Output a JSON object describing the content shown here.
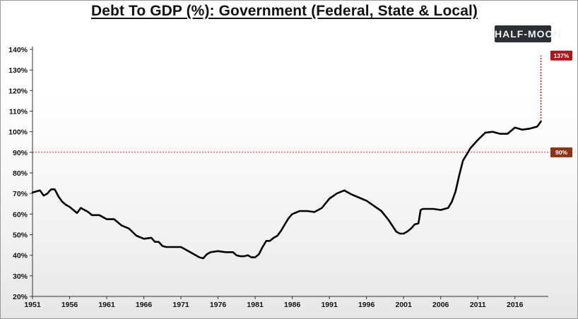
{
  "chart_data": {
    "type": "line",
    "title": "Debt To GDP (%): Government (Federal, State & Local)",
    "xlabel": "",
    "ylabel": "",
    "xlim": [
      1951,
      2020.5
    ],
    "ylim": [
      20,
      140
    ],
    "y_ticks": [
      20,
      30,
      40,
      50,
      60,
      70,
      80,
      90,
      100,
      110,
      120,
      130,
      140
    ],
    "y_tick_labels": [
      "20%",
      "30%",
      "40%",
      "50%",
      "60%",
      "70%",
      "80%",
      "90%",
      "100%",
      "110%",
      "120%",
      "130%",
      "140%"
    ],
    "x_ticks": [
      1951,
      1956,
      1961,
      1966,
      1971,
      1976,
      1981,
      1986,
      1991,
      1996,
      2001,
      2006,
      2011,
      2016
    ],
    "x_tick_labels": [
      "1951",
      "1956",
      "1961",
      "1966",
      "1971",
      "1976",
      "1981",
      "1986",
      "1991",
      "1996",
      "2001",
      "2006",
      "2011",
      "2016"
    ],
    "grid": false,
    "series": [
      {
        "name": "Debt To GDP",
        "x": [
          1951,
          1951.5,
          1952,
          1952.5,
          1953,
          1953.5,
          1954,
          1954.5,
          1955,
          1955.5,
          1956,
          1956.5,
          1957,
          1957.5,
          1958,
          1958.5,
          1959,
          1959.5,
          1960,
          1960.5,
          1961,
          1961.5,
          1962,
          1963,
          1964,
          1965,
          1966,
          1967,
          1967.5,
          1968,
          1968.5,
          1969,
          1970,
          1971,
          1972,
          1973,
          1973.5,
          1974,
          1974.5,
          1975,
          1976,
          1977,
          1978,
          1978.5,
          1979,
          1979.5,
          1980,
          1980.5,
          1981,
          1981.5,
          1982,
          1982.5,
          1983,
          1983.5,
          1984,
          1984.5,
          1985,
          1985.5,
          1986,
          1987,
          1988,
          1989,
          1990,
          1991,
          1992,
          1993,
          1994,
          1995,
          1996,
          1997,
          1998,
          1999,
          2000,
          2000.5,
          2001,
          2001.5,
          2002,
          2002.5,
          2003,
          2003.3,
          2003.6,
          2004,
          2005,
          2006,
          2007,
          2007.5,
          2008,
          2008.5,
          2009,
          2009.5,
          2010,
          2011,
          2012,
          2013,
          2014,
          2015,
          2016,
          2017,
          2018,
          2019,
          2019.5
        ],
        "values": [
          70.5,
          71,
          71.5,
          69,
          70,
          72,
          72,
          68.5,
          66,
          64.5,
          63.5,
          62,
          60.5,
          63,
          62,
          61,
          59.5,
          59.5,
          59.5,
          58.5,
          57.5,
          57.5,
          57.5,
          54.5,
          53,
          49.5,
          48,
          48.5,
          46.5,
          46.5,
          44.5,
          44,
          44,
          44,
          42,
          40,
          39,
          38.5,
          40.5,
          41.5,
          42,
          41.5,
          41.5,
          40,
          39.5,
          39.5,
          40,
          39,
          39,
          40.5,
          44,
          47,
          47,
          48.5,
          49.5,
          52,
          55,
          58,
          60,
          61.5,
          61.5,
          61,
          63,
          67.5,
          70,
          71.5,
          69.5,
          68,
          66.5,
          64,
          61.5,
          57,
          51.5,
          50.5,
          50.5,
          51.5,
          53,
          55,
          55.5,
          62,
          62.5,
          62.5,
          62.5,
          62,
          63,
          66,
          71,
          79,
          86,
          89,
          92,
          96,
          99.5,
          100,
          99,
          99,
          102,
          101,
          101.5,
          102.5,
          105
        ]
      }
    ],
    "projection": {
      "from_year": 2019.5,
      "from_value": 105,
      "to_value": 137,
      "label": "137%"
    },
    "reference_line": {
      "value": 90,
      "label": "90%"
    }
  },
  "logo": {
    "text": "HALF-MOON"
  },
  "colors": {
    "line": "#000000",
    "projection": "#c0161a",
    "reference": "#c0161a",
    "tag_137": "#b3141a",
    "tag_90": "#8e3216"
  }
}
